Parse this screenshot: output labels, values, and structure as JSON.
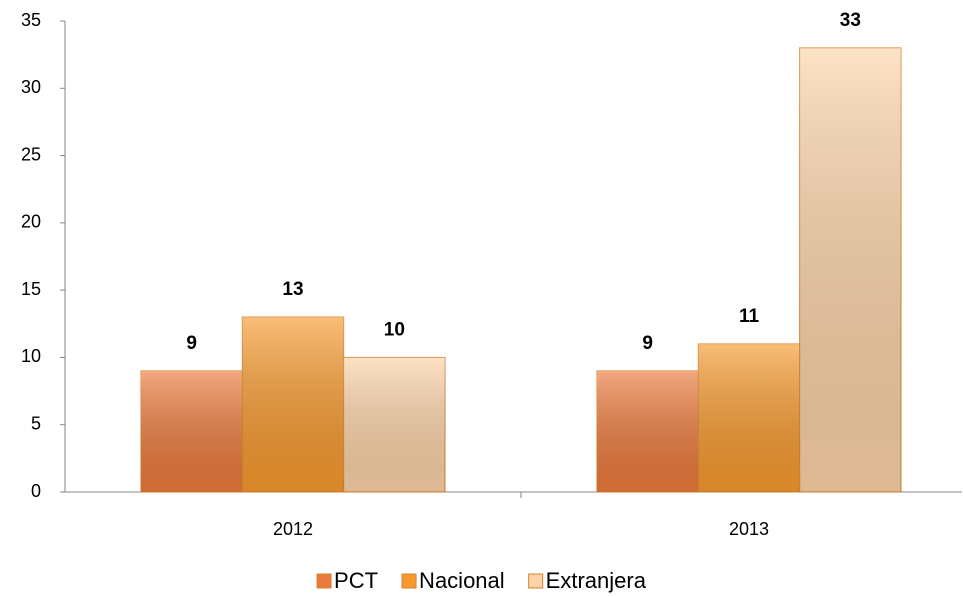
{
  "chart_data": {
    "type": "bar",
    "categories": [
      "2012",
      "2013"
    ],
    "series": [
      {
        "name": "PCT",
        "color": "#ec7a3c",
        "values": [
          9,
          9
        ]
      },
      {
        "name": "Nacional",
        "color": "#f79a2e",
        "values": [
          13,
          11
        ]
      },
      {
        "name": "Extranjera",
        "color": "#fcd3a8",
        "values": [
          10,
          33
        ]
      }
    ],
    "ylim": [
      0,
      35
    ],
    "yticks": [
      0,
      5,
      10,
      15,
      20,
      25,
      30,
      35
    ],
    "grid": false,
    "legend": "bottom"
  }
}
